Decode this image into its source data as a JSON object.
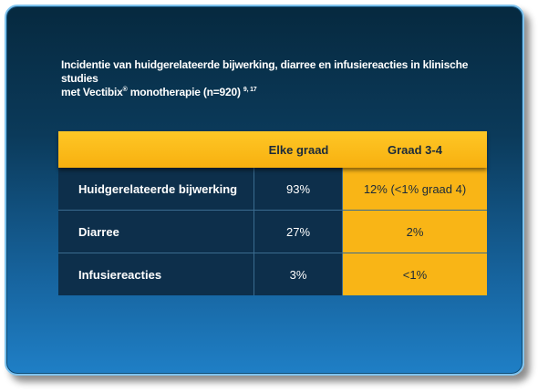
{
  "title": {
    "line1": "Incidentie van huidgerelateerde bijwerking, diarree en infusiereacties in klinische studies",
    "line2_main": "met Vectibix",
    "line2_reg": "®",
    "line2_rest": " monotherapie (n=920)",
    "line2_refs": "9, 17"
  },
  "table": {
    "headers": [
      "",
      "Elke graad",
      "Graad 3-4"
    ],
    "rows": [
      {
        "label": "Huidgerelateerde bijwerking",
        "any": "93%",
        "grade34": "12% (<1% graad 4)"
      },
      {
        "label": "Diarree",
        "any": "27%",
        "grade34": "2%"
      },
      {
        "label": "Infusiereacties",
        "any": "3%",
        "grade34": "<1%"
      }
    ]
  },
  "colors": {
    "background_dark": "#06293f",
    "background_light": "#1f7fc6",
    "border": "#7fc3ee",
    "accent_yellow": "#f9b516",
    "table_navy": "#0d2f4b"
  }
}
